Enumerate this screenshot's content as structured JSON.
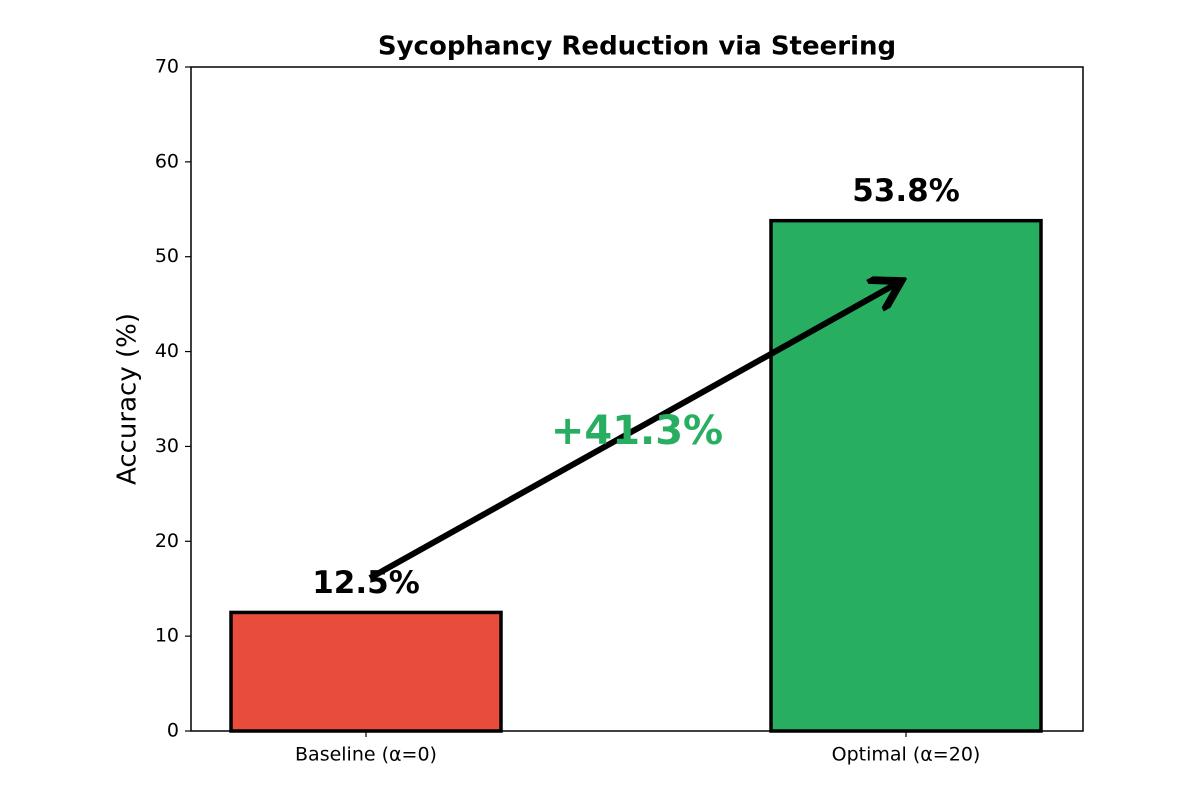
{
  "chart_data": {
    "type": "bar",
    "title": "Sycophancy Reduction via Steering",
    "y_label": "Accuracy (%)",
    "categories": [
      "Baseline (α=0)",
      "Optimal (α=20)"
    ],
    "values": [
      12.5,
      53.8
    ],
    "value_labels": [
      "12.5%",
      "53.8%"
    ],
    "colors": [
      "#e74c3c",
      "#27ae60"
    ],
    "annotation": "+41.3%",
    "ylim": [
      0,
      70
    ],
    "yticks": [
      0,
      10,
      20,
      30,
      40,
      50,
      60,
      70
    ],
    "grid": false
  }
}
